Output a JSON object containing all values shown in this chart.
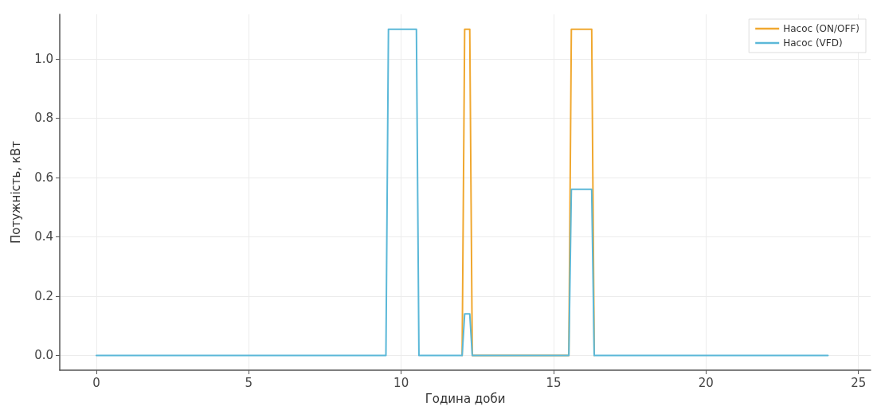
{
  "chart_data": {
    "type": "line",
    "xlabel": "Година доби",
    "ylabel": "Потужність, кВт",
    "series": [
      {
        "name": "Насос (ON/OFF)",
        "color": "#f0a830",
        "x": [
          12,
          12.083,
          12.25,
          12.333,
          15.5,
          15.583,
          16.25,
          16.333
        ],
        "values": [
          0,
          1.1,
          1.1,
          0,
          0,
          1.1,
          1.1,
          0
        ]
      },
      {
        "name": "Насос (VFD)",
        "color": "#5bb8d8",
        "x": [
          0,
          9.5,
          9.583,
          10.5,
          10.583,
          12,
          12.083,
          12.25,
          12.333,
          15.5,
          15.583,
          16.25,
          16.333,
          24
        ],
        "values": [
          0,
          0,
          1.1,
          1.1,
          0,
          0,
          0.14,
          0.14,
          0,
          0,
          0.56,
          0.56,
          0,
          0
        ]
      }
    ],
    "xlim": [
      -1.2,
      25.4
    ],
    "xticks": [
      0,
      5,
      10,
      15,
      20,
      25
    ],
    "ylim": [
      -0.05,
      1.15
    ],
    "yticks": [
      {
        "value": 0,
        "label": "0.0"
      },
      {
        "value": 0.2,
        "label": "0.2"
      },
      {
        "value": 0.4,
        "label": "0.4"
      },
      {
        "value": 0.6,
        "label": "0.6"
      },
      {
        "value": 0.8,
        "label": "0.8"
      },
      {
        "value": 1,
        "label": "1.0"
      }
    ],
    "grid": true,
    "legend": "top right",
    "marker": "none",
    "line_style": "solid"
  }
}
